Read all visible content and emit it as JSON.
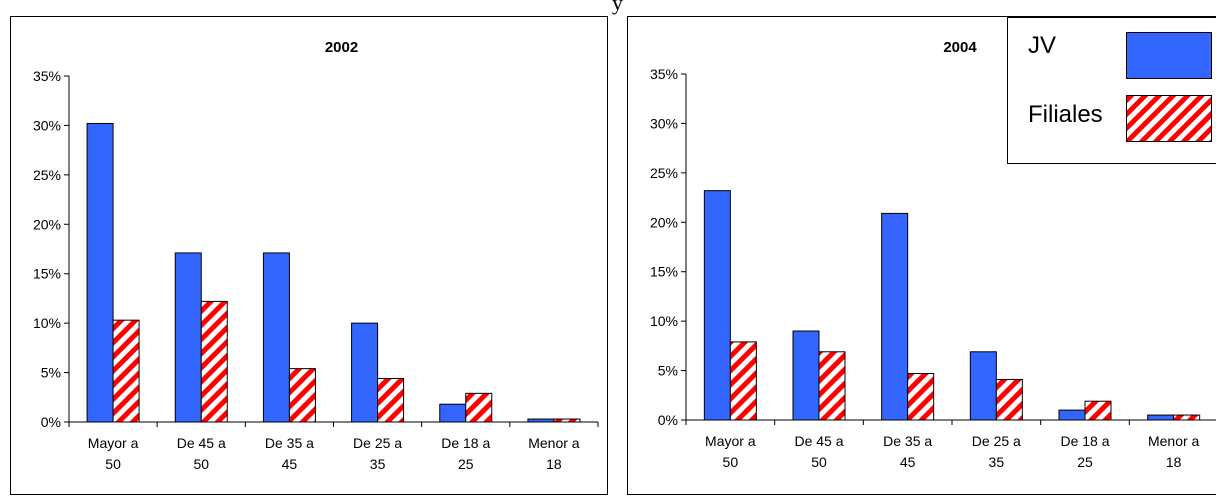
{
  "page": {
    "top_fragment": "y"
  },
  "legend": {
    "items": [
      {
        "label": "JV",
        "fill": "solid",
        "color": "#3366ff"
      },
      {
        "label": "Filiales",
        "fill": "diagonal-stripes",
        "color": "#ff0000",
        "stripe_bg": "#ffffff"
      }
    ]
  },
  "chart_data": [
    {
      "type": "bar",
      "title": "2002",
      "categories": [
        [
          "Mayor a",
          "50"
        ],
        [
          "De 45 a",
          "50"
        ],
        [
          "De 35 a",
          "45"
        ],
        [
          "De 25 a",
          "35"
        ],
        [
          "De 18 a",
          "25"
        ],
        [
          "Menor a",
          "18"
        ]
      ],
      "series": [
        {
          "name": "JV",
          "values": [
            30.2,
            17.1,
            17.1,
            10.0,
            1.8,
            0.3
          ]
        },
        {
          "name": "Filiales",
          "values": [
            10.3,
            12.2,
            5.4,
            4.4,
            2.9,
            0.3
          ]
        }
      ],
      "ylim": [
        0,
        35
      ],
      "yticks": [
        "0%",
        "5%",
        "10%",
        "15%",
        "20%",
        "25%",
        "30%",
        "35%"
      ],
      "grid": false,
      "xlabel": "",
      "ylabel": ""
    },
    {
      "type": "bar",
      "title": "2004",
      "categories": [
        [
          "Mayor a",
          "50"
        ],
        [
          "De 45 a",
          "50"
        ],
        [
          "De 35 a",
          "45"
        ],
        [
          "De 25 a",
          "35"
        ],
        [
          "De 18 a",
          "25"
        ],
        [
          "Menor a",
          "18"
        ]
      ],
      "series": [
        {
          "name": "JV",
          "values": [
            23.2,
            9.0,
            20.9,
            6.9,
            1.0,
            0.5
          ]
        },
        {
          "name": "Filiales",
          "values": [
            7.9,
            6.9,
            4.7,
            4.1,
            1.9,
            0.5
          ]
        }
      ],
      "ylim": [
        0,
        35
      ],
      "yticks": [
        "0%",
        "5%",
        "10%",
        "15%",
        "20%",
        "25%",
        "30%",
        "35%"
      ],
      "grid": false,
      "xlabel": "",
      "ylabel": ""
    }
  ]
}
